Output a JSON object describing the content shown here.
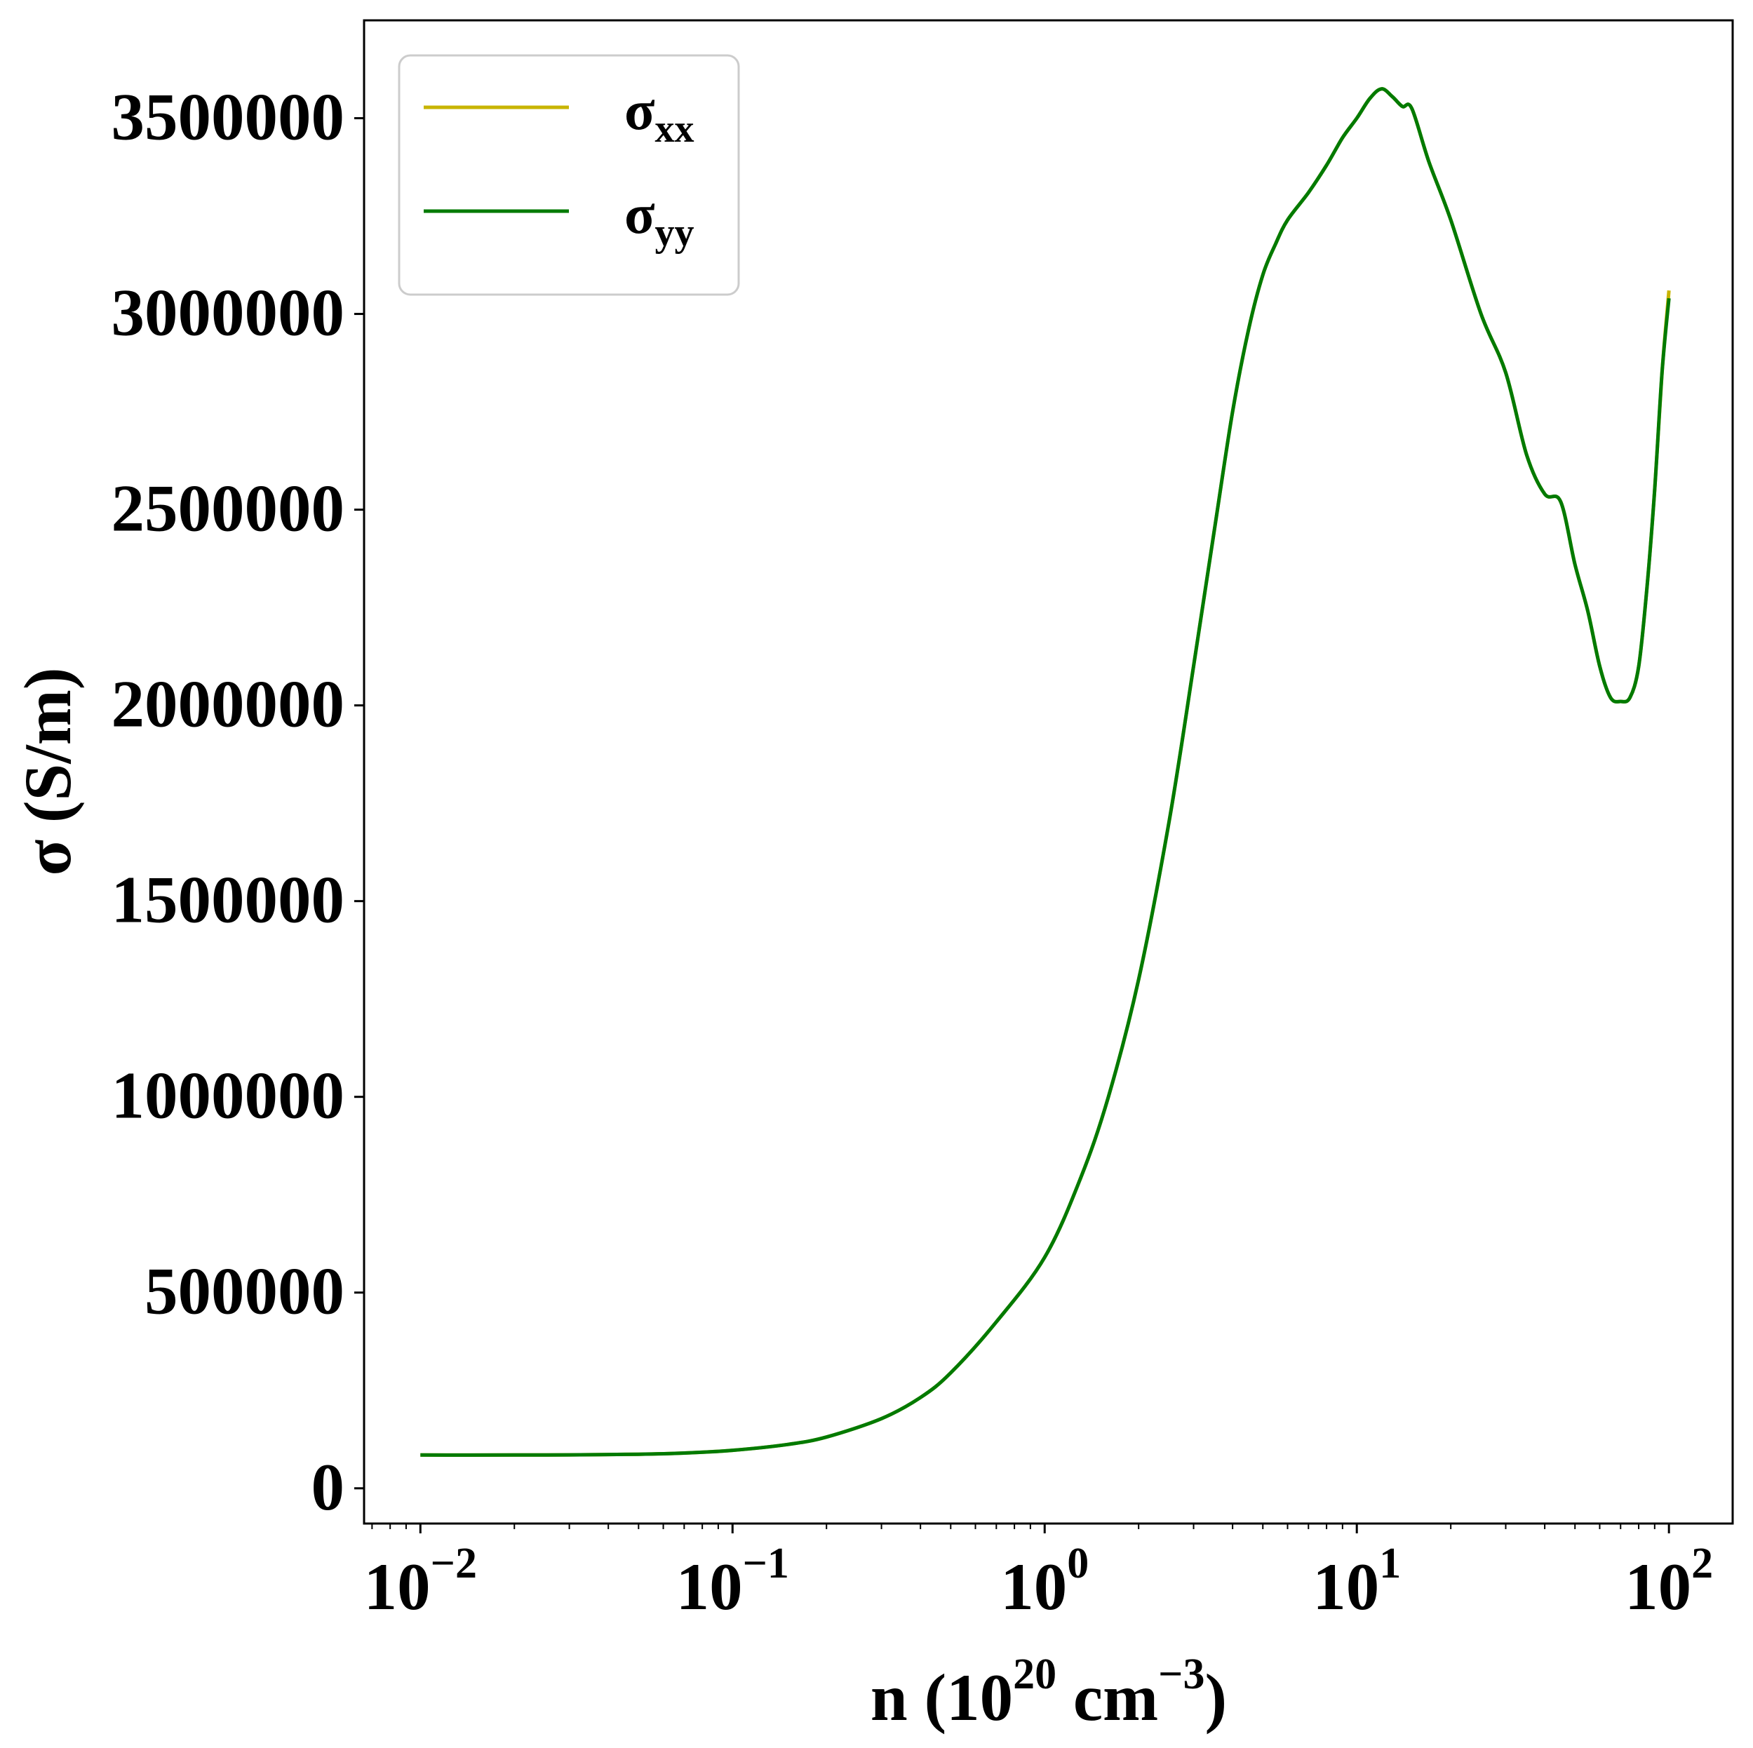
{
  "chart_data": {
    "type": "line",
    "xlabel": "n (10^20 cm^-3)",
    "xlabel_parts": {
      "prefix": "n (10",
      "exp1": "20",
      "mid": " cm",
      "exp2": "−3",
      "suffix": ")"
    },
    "ylabel": "σ (S/m)",
    "xscale": "log",
    "xlim": [
      0.0066,
      160
    ],
    "ylim": [
      -90000,
      3750000
    ],
    "xticks": [
      {
        "value": 0.01,
        "base": "10",
        "exp": "−2"
      },
      {
        "value": 0.1,
        "base": "10",
        "exp": "−1"
      },
      {
        "value": 1,
        "base": "10",
        "exp": "0"
      },
      {
        "value": 10,
        "base": "10",
        "exp": "1"
      },
      {
        "value": 100,
        "base": "10",
        "exp": "2"
      }
    ],
    "yticks": [
      {
        "value": 0,
        "label": "0"
      },
      {
        "value": 500000,
        "label": "500000"
      },
      {
        "value": 1000000,
        "label": "1000000"
      },
      {
        "value": 1500000,
        "label": "1500000"
      },
      {
        "value": 2000000,
        "label": "2000000"
      },
      {
        "value": 2500000,
        "label": "2500000"
      },
      {
        "value": 3000000,
        "label": "3000000"
      },
      {
        "value": 3500000,
        "label": "3500000"
      }
    ],
    "grid": false,
    "legend_position": "top-left",
    "series": [
      {
        "name": "σxx",
        "base": "σ",
        "sub": "xx",
        "color": "#c8b400",
        "x": [
          0.01,
          0.02,
          0.03,
          0.05,
          0.07,
          0.1,
          0.15,
          0.2,
          0.3,
          0.4,
          0.5,
          0.7,
          1.0,
          1.3,
          1.6,
          2.0,
          2.5,
          3.0,
          3.5,
          4.0,
          4.5,
          5.0,
          5.5,
          6.0,
          7.0,
          8.0,
          9.0,
          10.0,
          11.0,
          12.0,
          13.0,
          14.0,
          15.0,
          17.0,
          20.0,
          25.0,
          30.0,
          35.0,
          40.0,
          45.0,
          50.0,
          55.0,
          60.0,
          65.0,
          70.0,
          75.0,
          80.0,
          85.0,
          90.0,
          95.0,
          100.0
        ],
        "y": [
          85000,
          85000,
          85500,
          87000,
          90000,
          97000,
          112000,
          131000,
          178000,
          232000,
          295000,
          425000,
          590000,
          790000,
          1000000,
          1300000,
          1700000,
          2100000,
          2450000,
          2750000,
          2960000,
          3100000,
          3180000,
          3240000,
          3310000,
          3380000,
          3450000,
          3500000,
          3550000,
          3575000,
          3555000,
          3530000,
          3525000,
          3390000,
          3240000,
          3000000,
          2850000,
          2640000,
          2540000,
          2520000,
          2360000,
          2240000,
          2100000,
          2020000,
          2010000,
          2020000,
          2100000,
          2300000,
          2550000,
          2850000,
          3060000
        ]
      },
      {
        "name": "σyy",
        "base": "σ",
        "sub": "yy",
        "color": "#007a00",
        "x": [
          0.01,
          0.02,
          0.03,
          0.05,
          0.07,
          0.1,
          0.15,
          0.2,
          0.3,
          0.4,
          0.5,
          0.7,
          1.0,
          1.3,
          1.6,
          2.0,
          2.5,
          3.0,
          3.5,
          4.0,
          4.5,
          5.0,
          5.5,
          6.0,
          7.0,
          8.0,
          9.0,
          10.0,
          11.0,
          12.0,
          13.0,
          14.0,
          15.0,
          17.0,
          20.0,
          25.0,
          30.0,
          35.0,
          40.0,
          45.0,
          50.0,
          55.0,
          60.0,
          65.0,
          70.0,
          75.0,
          80.0,
          85.0,
          90.0,
          95.0,
          100.0
        ],
        "y": [
          85000,
          85000,
          85500,
          87000,
          90000,
          97000,
          112000,
          131000,
          178000,
          232000,
          295000,
          425000,
          590000,
          790000,
          1000000,
          1300000,
          1700000,
          2100000,
          2450000,
          2750000,
          2960000,
          3100000,
          3180000,
          3240000,
          3310000,
          3380000,
          3450000,
          3500000,
          3550000,
          3575000,
          3555000,
          3530000,
          3525000,
          3390000,
          3240000,
          3000000,
          2850000,
          2640000,
          2540000,
          2520000,
          2360000,
          2240000,
          2100000,
          2020000,
          2010000,
          2020000,
          2100000,
          2300000,
          2550000,
          2850000,
          3040000
        ]
      }
    ]
  }
}
